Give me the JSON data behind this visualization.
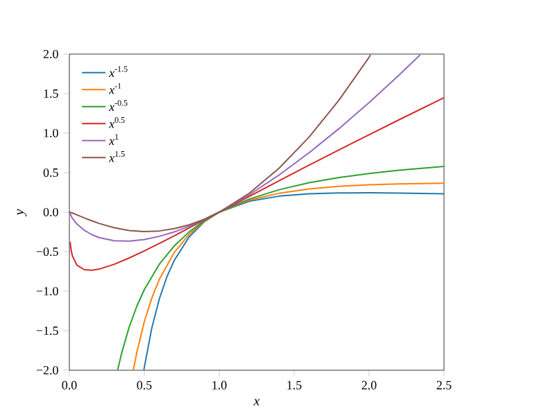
{
  "chart_data": {
    "type": "line",
    "xlabel": "*x*",
    "ylabel": "*y*",
    "legend": "top left",
    "grid": false,
    "marker": "none",
    "line_style": "solid",
    "xlim": [
      0.0,
      2.5
    ],
    "ylim": [
      -2.0,
      2.0
    ],
    "xticks": [
      {
        "value": 0.0,
        "label": "0.0"
      },
      {
        "value": 0.5,
        "label": "0.5"
      },
      {
        "value": 1.0,
        "label": "1.0"
      },
      {
        "value": 1.5,
        "label": "1.5"
      },
      {
        "value": 2.0,
        "label": "2.0"
      },
      {
        "value": 2.5,
        "label": "2.5"
      }
    ],
    "yticks": [
      {
        "value": -2.0,
        "label": "−2.0"
      },
      {
        "value": -1.5,
        "label": "−1.5"
      },
      {
        "value": -1.0,
        "label": "−1.0"
      },
      {
        "value": -0.5,
        "label": "−0.5"
      },
      {
        "value": 0.0,
        "label": "0.0"
      },
      {
        "value": 0.5,
        "label": "0.5"
      },
      {
        "value": 1.0,
        "label": "1.0"
      },
      {
        "value": 1.5,
        "label": "1.5"
      },
      {
        "value": 2.0,
        "label": "2.0"
      }
    ],
    "series": [
      {
        "name": "*x*$^{-1.5}$",
        "color": "#1f77b4",
        "x": [
          0.497,
          0.55,
          0.6,
          0.65,
          0.7,
          0.8,
          0.9,
          1.0,
          1.2,
          1.4,
          1.6,
          1.8,
          2.0,
          2.2,
          2.5
        ],
        "values": [
          -1.995,
          -1.466,
          -1.099,
          -0.822,
          -0.609,
          -0.312,
          -0.123,
          0,
          0.138,
          0.203,
          0.232,
          0.243,
          0.245,
          0.242,
          0.232
        ]
      },
      {
        "name": "*x*$^{-1}$",
        "color": "#ff7f0e",
        "x": [
          0.427,
          0.45,
          0.5,
          0.55,
          0.6,
          0.7,
          0.8,
          0.9,
          1.0,
          1.2,
          1.4,
          1.6,
          1.8,
          2.0,
          2.2,
          2.5
        ],
        "values": [
          -1.993,
          -1.775,
          -1.386,
          -1.087,
          -0.851,
          -0.51,
          -0.279,
          -0.117,
          0,
          0.152,
          0.24,
          0.294,
          0.327,
          0.347,
          0.358,
          0.367
        ]
      },
      {
        "name": "*x*$^{-0.5}$",
        "color": "#2ca02c",
        "x": [
          0.322,
          0.35,
          0.4,
          0.45,
          0.5,
          0.6,
          0.7,
          0.8,
          0.9,
          1.0,
          1.2,
          1.4,
          1.6,
          1.8,
          2.0,
          2.2,
          2.5
        ],
        "values": [
          -1.997,
          -1.775,
          -1.448,
          -1.191,
          -0.98,
          -0.66,
          -0.427,
          -0.249,
          -0.111,
          0,
          0.166,
          0.284,
          0.372,
          0.438,
          0.49,
          0.531,
          0.579
        ]
      },
      {
        "name": "*x*$^{0.5}$",
        "color": "#d62728",
        "x": [
          0.005,
          0.01,
          0.02,
          0.05,
          0.1,
          0.15,
          0.2,
          0.3,
          0.4,
          0.5,
          0.6,
          0.7,
          0.8,
          0.9,
          1.0,
          1.2,
          1.4,
          1.6,
          1.8,
          2.0,
          2.2,
          2.5
        ],
        "values": [
          -0.375,
          -0.461,
          -0.553,
          -0.67,
          -0.728,
          -0.735,
          -0.72,
          -0.659,
          -0.579,
          -0.49,
          -0.396,
          -0.299,
          -0.199,
          -0.1,
          0,
          0.199,
          0.398,
          0.595,
          0.789,
          0.98,
          1.169,
          1.448
        ]
      },
      {
        "name": "*x*$^{1}$",
        "color": "#9467bd",
        "x": [
          0.0,
          0.02,
          0.05,
          0.1,
          0.15,
          0.2,
          0.3,
          0.4,
          0.5,
          0.6,
          0.7,
          0.8,
          0.9,
          1.0,
          1.2,
          1.4,
          1.6,
          1.8,
          2.0,
          2.2,
          2.34
        ],
        "values": [
          0,
          -0.078,
          -0.15,
          -0.23,
          -0.285,
          -0.322,
          -0.361,
          -0.367,
          -0.347,
          -0.306,
          -0.25,
          -0.179,
          -0.095,
          0,
          0.219,
          0.471,
          0.752,
          1.058,
          1.386,
          1.735,
          1.989
        ]
      },
      {
        "name": "*x*$^{1.5}$",
        "color": "#8c564b",
        "x": [
          0.0,
          0.02,
          0.05,
          0.1,
          0.15,
          0.2,
          0.3,
          0.4,
          0.5,
          0.6,
          0.7,
          0.8,
          0.9,
          1.0,
          1.2,
          1.4,
          1.6,
          1.8,
          2.0,
          2.01
        ],
        "values": [
          0,
          -0.011,
          -0.034,
          -0.073,
          -0.11,
          -0.144,
          -0.198,
          -0.232,
          -0.245,
          -0.238,
          -0.209,
          -0.16,
          -0.09,
          0,
          0.239,
          0.557,
          0.951,
          1.42,
          1.96,
          1.989
        ]
      }
    ]
  }
}
